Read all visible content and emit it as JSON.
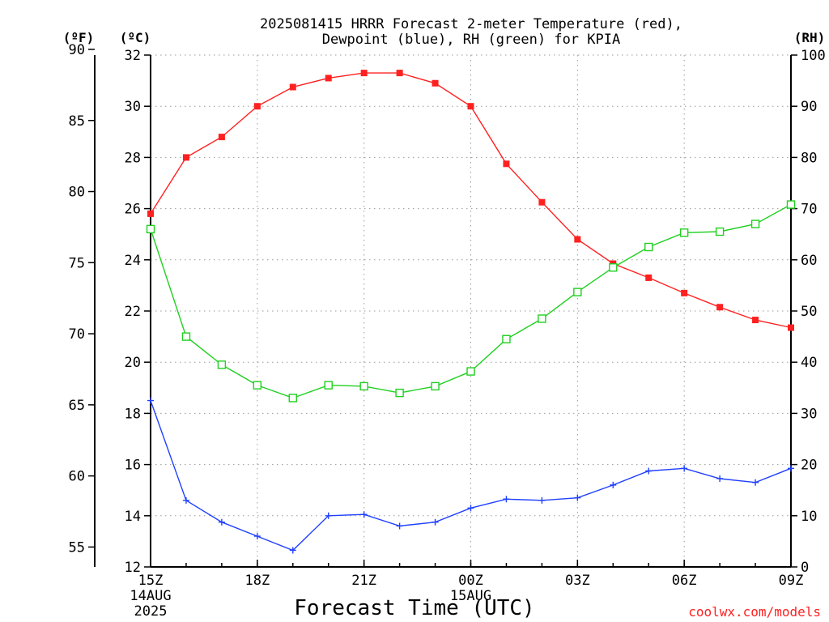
{
  "chart_data": {
    "type": "line",
    "title": "2025081415 HRRR Forecast 2-meter Temperature (red),",
    "subtitle": "Dewpoint (blue), RH (green) for KPIA",
    "xlabel": "Forecast Time (UTC)",
    "credit": "coolwx.com/models",
    "units": {
      "fahrenheit": "(ºF)",
      "celsius": "(ºC)",
      "rh": "(RH)"
    },
    "x_ticks": [
      {
        "label": "15Z",
        "hour": 0,
        "sub": [
          "14AUG",
          "2025"
        ]
      },
      {
        "label": "18Z",
        "hour": 3,
        "sub": []
      },
      {
        "label": "21Z",
        "hour": 6,
        "sub": []
      },
      {
        "label": "00Z",
        "hour": 9,
        "sub": [
          "15AUG"
        ]
      },
      {
        "label": "03Z",
        "hour": 12,
        "sub": []
      },
      {
        "label": "06Z",
        "hour": 15,
        "sub": []
      },
      {
        "label": "09Z",
        "hour": 18,
        "sub": []
      }
    ],
    "x": [
      "15Z",
      "16Z",
      "17Z",
      "18Z",
      "19Z",
      "20Z",
      "21Z",
      "22Z",
      "23Z",
      "00Z",
      "01Z",
      "02Z",
      "03Z",
      "04Z",
      "05Z",
      "06Z",
      "07Z",
      "08Z",
      "09Z"
    ],
    "celsius_axis": {
      "range": [
        12,
        32
      ],
      "ticks": [
        12,
        14,
        16,
        18,
        20,
        22,
        24,
        26,
        28,
        30,
        32
      ]
    },
    "fahrenheit_axis": {
      "range": [
        53.6,
        89.6
      ],
      "ticks": [
        55,
        60,
        65,
        70,
        75,
        80,
        85,
        90
      ]
    },
    "rh_axis": {
      "range": [
        0,
        100
      ],
      "ticks": [
        0,
        10,
        20,
        30,
        40,
        50,
        60,
        70,
        80,
        90,
        100
      ]
    },
    "series": [
      {
        "name": "Temperature",
        "color": "#ff2020",
        "axis": "celsius",
        "marker": "filled-square",
        "values": [
          25.8,
          28.0,
          28.8,
          30.0,
          30.75,
          31.1,
          31.3,
          31.3,
          30.9,
          30.0,
          27.75,
          26.25,
          24.8,
          23.85,
          23.3,
          22.7,
          22.15,
          21.65,
          21.35
        ]
      },
      {
        "name": "Dewpoint",
        "color": "#2040ff",
        "axis": "celsius",
        "marker": "plus",
        "values": [
          18.5,
          14.6,
          13.75,
          13.2,
          12.65,
          14.0,
          14.05,
          13.6,
          13.75,
          14.3,
          14.65,
          14.6,
          14.7,
          15.2,
          15.75,
          15.85,
          15.45,
          15.3,
          15.85
        ]
      },
      {
        "name": "RH",
        "color": "#20d020",
        "axis": "rh",
        "marker": "open-square",
        "values": [
          66,
          45,
          39.5,
          35.5,
          33,
          35.5,
          35.3,
          34,
          35.3,
          38.2,
          44.5,
          48.5,
          53.7,
          58.5,
          62.5,
          65.3,
          65.5,
          67,
          70.8
        ]
      }
    ],
    "grid": true
  }
}
